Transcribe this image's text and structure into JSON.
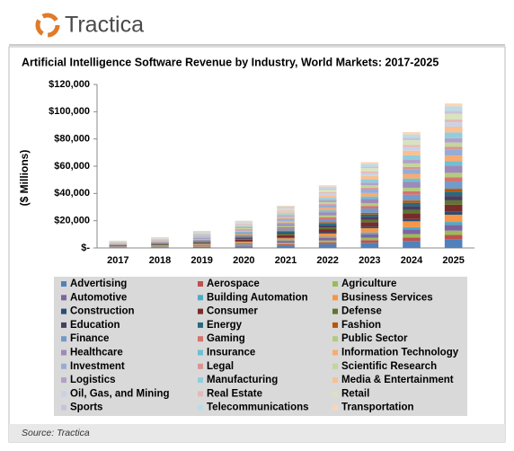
{
  "header": {
    "logo": "Tractica"
  },
  "footer": {
    "source": "Source: Tractica"
  },
  "chart_data": {
    "type": "stacked-bar",
    "title": "Artificial Intelligence Software Revenue by Industry, World Markets: 2017-2025",
    "y_label": "($ Millions)",
    "categories": [
      "2017",
      "2018",
      "2019",
      "2020",
      "2021",
      "2022",
      "2023",
      "2024",
      "2025"
    ],
    "ylim": [
      0,
      120000
    ],
    "yticks": [
      {
        "value": 0,
        "label": "$-"
      },
      {
        "value": 20000,
        "label": "$20,000"
      },
      {
        "value": 40000,
        "label": "$40,000"
      },
      {
        "value": 60000,
        "label": "$60,000"
      },
      {
        "value": 80000,
        "label": "$80,000"
      },
      {
        "value": 100000,
        "label": "$100,000"
      },
      {
        "value": 120000,
        "label": "$120,000"
      }
    ],
    "legend_columns": 3,
    "series": [
      {
        "name": "Advertising",
        "color": "#4f81bd",
        "values": [
          324,
          480,
          750,
          1200,
          1860,
          2760,
          3780,
          5100,
          6360
        ]
      },
      {
        "name": "Aerospace",
        "color": "#c0504d",
        "values": [
          162,
          240,
          375,
          600,
          930,
          1380,
          1890,
          2550,
          3180
        ]
      },
      {
        "name": "Agriculture",
        "color": "#9bbb59",
        "values": [
          162,
          240,
          375,
          600,
          930,
          1380,
          1890,
          2550,
          3180
        ]
      },
      {
        "name": "Automotive",
        "color": "#8064a2",
        "values": [
          216,
          320,
          500,
          800,
          1240,
          1840,
          2520,
          3400,
          4240
        ]
      },
      {
        "name": "Building Automation",
        "color": "#4bacc6",
        "values": [
          108,
          160,
          250,
          400,
          620,
          920,
          1260,
          1700,
          2120
        ]
      },
      {
        "name": "Business Services",
        "color": "#f79646",
        "values": [
          270,
          400,
          625,
          1000,
          1550,
          2300,
          3150,
          4250,
          5300
        ]
      },
      {
        "name": "Construction",
        "color": "#2c4d75",
        "values": [
          108,
          160,
          250,
          400,
          620,
          920,
          1260,
          1700,
          2120
        ]
      },
      {
        "name": "Consumer",
        "color": "#772c2a",
        "values": [
          270,
          400,
          625,
          1000,
          1550,
          2300,
          3150,
          4250,
          5300
        ]
      },
      {
        "name": "Defense",
        "color": "#5f7530",
        "values": [
          162,
          240,
          375,
          600,
          930,
          1380,
          1890,
          2550,
          3180
        ]
      },
      {
        "name": "Education",
        "color": "#4d3b62",
        "values": [
          162,
          240,
          375,
          600,
          930,
          1380,
          1890,
          2550,
          3180
        ]
      },
      {
        "name": "Energy",
        "color": "#276a7c",
        "values": [
          162,
          240,
          375,
          600,
          930,
          1380,
          1890,
          2550,
          3180
        ]
      },
      {
        "name": "Fashion",
        "color": "#b65708",
        "values": [
          108,
          160,
          250,
          400,
          620,
          920,
          1260,
          1700,
          2120
        ]
      },
      {
        "name": "Finance",
        "color": "#729aca",
        "values": [
          270,
          400,
          625,
          1000,
          1550,
          2300,
          3150,
          4250,
          5300
        ]
      },
      {
        "name": "Gaming",
        "color": "#d4736f",
        "values": [
          162,
          240,
          375,
          600,
          930,
          1380,
          1890,
          2550,
          3180
        ]
      },
      {
        "name": "Public Sector",
        "color": "#b3cb80",
        "values": [
          162,
          240,
          375,
          600,
          930,
          1380,
          1890,
          2550,
          3180
        ]
      },
      {
        "name": "Healthcare",
        "color": "#9e8ab8",
        "values": [
          270,
          400,
          625,
          1000,
          1550,
          2300,
          3150,
          4250,
          5300
        ]
      },
      {
        "name": "Insurance",
        "color": "#6fbfd5",
        "values": [
          162,
          240,
          375,
          600,
          930,
          1380,
          1890,
          2550,
          3180
        ]
      },
      {
        "name": "Information Technology",
        "color": "#f9ab70",
        "values": [
          216,
          320,
          500,
          800,
          1240,
          1840,
          2520,
          3400,
          4240
        ]
      },
      {
        "name": "Investment",
        "color": "#95add6",
        "values": [
          216,
          320,
          500,
          800,
          1240,
          1840,
          2520,
          3400,
          4240
        ]
      },
      {
        "name": "Legal",
        "color": "#d99594",
        "values": [
          108,
          160,
          250,
          400,
          620,
          920,
          1260,
          1700,
          2120
        ]
      },
      {
        "name": "Scientific Research",
        "color": "#c3d69b",
        "values": [
          162,
          240,
          375,
          600,
          930,
          1380,
          1890,
          2550,
          3180
        ]
      },
      {
        "name": "Logistics",
        "color": "#b2a1c7",
        "values": [
          162,
          240,
          375,
          600,
          930,
          1380,
          1890,
          2550,
          3180
        ]
      },
      {
        "name": "Manufacturing",
        "color": "#92cddc",
        "values": [
          216,
          320,
          500,
          800,
          1240,
          1840,
          2520,
          3400,
          4240
        ]
      },
      {
        "name": "Media & Entertainment",
        "color": "#fac090",
        "values": [
          216,
          320,
          500,
          800,
          1240,
          1840,
          2520,
          3400,
          4240
        ]
      },
      {
        "name": "Oil, Gas, and Mining",
        "color": "#c6d3e8",
        "values": [
          162,
          240,
          375,
          600,
          930,
          1380,
          1890,
          2550,
          3180
        ]
      },
      {
        "name": "Real Estate",
        "color": "#e6b9b8",
        "values": [
          108,
          160,
          250,
          400,
          620,
          920,
          1260,
          1700,
          2120
        ]
      },
      {
        "name": "Retail",
        "color": "#d7e4bd",
        "values": [
          216,
          320,
          500,
          800,
          1240,
          1840,
          2520,
          3400,
          4240
        ]
      },
      {
        "name": "Sports",
        "color": "#ccc1da",
        "values": [
          108,
          160,
          250,
          400,
          620,
          920,
          1260,
          1700,
          2120
        ]
      },
      {
        "name": "Telecommunications",
        "color": "#b7dee8",
        "values": [
          162,
          240,
          375,
          600,
          930,
          1380,
          1890,
          2550,
          3180
        ]
      },
      {
        "name": "Transportation",
        "color": "#fcd5b4",
        "values": [
          108,
          160,
          250,
          400,
          620,
          920,
          1260,
          1700,
          2120
        ]
      }
    ]
  }
}
